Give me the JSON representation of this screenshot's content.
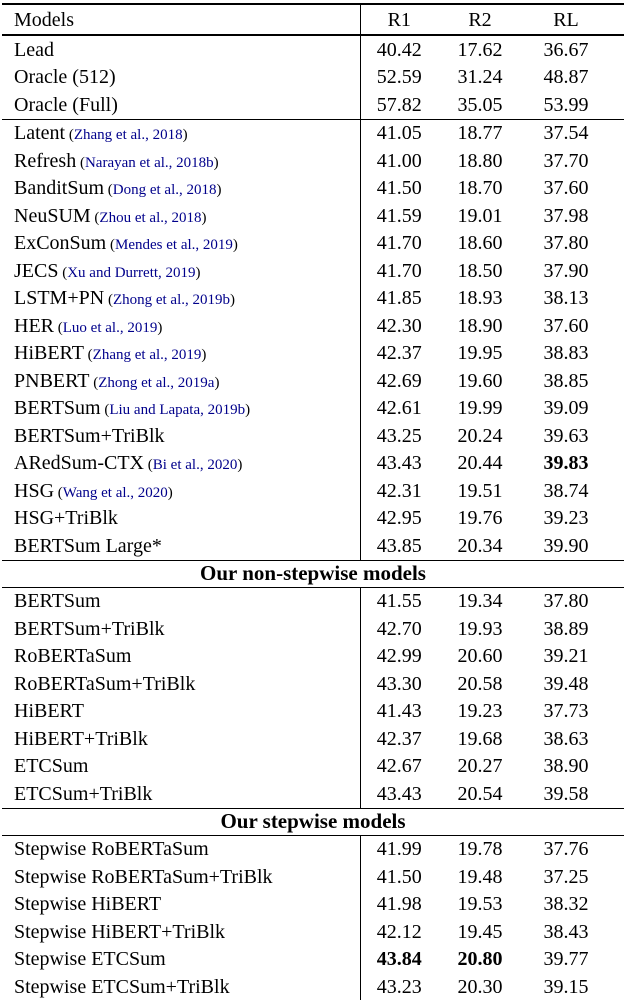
{
  "colors": {
    "citation": "#00008B",
    "text": "#000000",
    "rule": "#000000"
  },
  "table": {
    "header": {
      "models": "Models",
      "r1": "R1",
      "r2": "R2",
      "rl": "RL"
    },
    "sections": [
      {
        "rows": [
          {
            "model": "Lead",
            "r1": "40.42",
            "r2": "17.62",
            "rl": "36.67"
          },
          {
            "model": "Oracle (512)",
            "r1": "52.59",
            "r2": "31.24",
            "rl": "48.87"
          },
          {
            "model": "Oracle (Full)",
            "r1": "57.82",
            "r2": "35.05",
            "rl": "53.99"
          }
        ]
      },
      {
        "rows": [
          {
            "model": "Latent",
            "cite": "Zhang et al., 2018",
            "r1": "41.05",
            "r2": "18.77",
            "rl": "37.54"
          },
          {
            "model": "Refresh",
            "cite": "Narayan et al., 2018b",
            "r1": "41.00",
            "r2": "18.80",
            "rl": "37.70"
          },
          {
            "model": "BanditSum",
            "cite": "Dong et al., 2018",
            "r1": "41.50",
            "r2": "18.70",
            "rl": "37.60"
          },
          {
            "model": "NeuSUM",
            "cite": "Zhou et al., 2018",
            "r1": "41.59",
            "r2": "19.01",
            "rl": "37.98"
          },
          {
            "model": "ExConSum",
            "cite": "Mendes et al., 2019",
            "r1": "41.70",
            "r2": "18.60",
            "rl": "37.80"
          },
          {
            "model": "JECS",
            "cite": "Xu and Durrett, 2019",
            "r1": "41.70",
            "r2": "18.50",
            "rl": "37.90"
          },
          {
            "model": "LSTM+PN",
            "cite": "Zhong et al., 2019b",
            "r1": "41.85",
            "r2": "18.93",
            "rl": "38.13"
          },
          {
            "model": "HER",
            "cite": "Luo et al., 2019",
            "r1": "42.30",
            "r2": "18.90",
            "rl": "37.60"
          },
          {
            "model": "HiBERT",
            "cite": "Zhang et al., 2019",
            "r1": "42.37",
            "r2": "19.95",
            "rl": "38.83"
          },
          {
            "model": "PNBERT",
            "cite": "Zhong et al., 2019a",
            "r1": "42.69",
            "r2": "19.60",
            "rl": "38.85"
          },
          {
            "model": "BERTSum",
            "cite": "Liu and Lapata, 2019b",
            "r1": "42.61",
            "r2": "19.99",
            "rl": "39.09"
          },
          {
            "model": "BERTSum+TriBlk",
            "r1": "43.25",
            "r2": "20.24",
            "rl": "39.63"
          },
          {
            "model": "ARedSum-CTX",
            "cite": "Bi et al., 2020",
            "r1": "43.43",
            "r2": "20.44",
            "rl": "39.83",
            "bold": [
              "rl"
            ]
          },
          {
            "model": "HSG",
            "cite": "Wang et al., 2020",
            "r1": "42.31",
            "r2": "19.51",
            "rl": "38.74"
          },
          {
            "model": "HSG+TriBlk",
            "r1": "42.95",
            "r2": "19.76",
            "rl": "39.23"
          },
          {
            "model": "BERTSum Large*",
            "r1": "43.85",
            "r2": "20.34",
            "rl": "39.90"
          }
        ]
      },
      {
        "title": "Our non-stepwise models",
        "rows": [
          {
            "model": "BERTSum",
            "r1": "41.55",
            "r2": "19.34",
            "rl": "37.80"
          },
          {
            "model": "BERTSum+TriBlk",
            "r1": "42.70",
            "r2": "19.93",
            "rl": "38.89"
          },
          {
            "model": "RoBERTaSum",
            "r1": "42.99",
            "r2": "20.60",
            "rl": "39.21"
          },
          {
            "model": "RoBERTaSum+TriBlk",
            "r1": "43.30",
            "r2": "20.58",
            "rl": "39.48"
          },
          {
            "model": "HiBERT",
            "r1": "41.43",
            "r2": "19.23",
            "rl": "37.73"
          },
          {
            "model": "HiBERT+TriBlk",
            "r1": "42.37",
            "r2": "19.68",
            "rl": "38.63"
          },
          {
            "model": "ETCSum",
            "r1": "42.67",
            "r2": "20.27",
            "rl": "38.90"
          },
          {
            "model": "ETCSum+TriBlk",
            "r1": "43.43",
            "r2": "20.54",
            "rl": "39.58"
          }
        ]
      },
      {
        "title": "Our stepwise models",
        "rows": [
          {
            "model": "Stepwise RoBERTaSum",
            "r1": "41.99",
            "r2": "19.78",
            "rl": "37.76"
          },
          {
            "model": "Stepwise RoBERTaSum+TriBlk",
            "r1": "41.50",
            "r2": "19.48",
            "rl": "37.25"
          },
          {
            "model": "Stepwise HiBERT",
            "r1": "41.98",
            "r2": "19.53",
            "rl": "38.32"
          },
          {
            "model": "Stepwise HiBERT+TriBlk",
            "r1": "42.12",
            "r2": "19.45",
            "rl": "38.43"
          },
          {
            "model": "Stepwise ETCSum",
            "r1": "43.84",
            "r2": "20.80",
            "rl": "39.77",
            "bold": [
              "r1",
              "r2"
            ]
          },
          {
            "model": "Stepwise ETCSum+TriBlk",
            "r1": "43.23",
            "r2": "20.30",
            "rl": "39.15"
          }
        ]
      }
    ]
  }
}
